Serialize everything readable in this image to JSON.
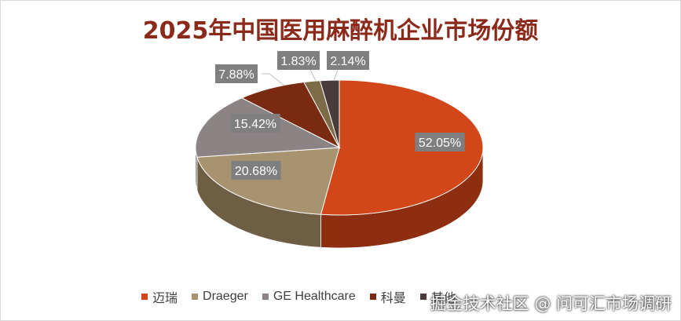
{
  "chart_data": {
    "type": "pie",
    "title": "2025年中国医用麻醉机企业市场份额",
    "legend_position": "bottom",
    "series": [
      {
        "name": "迈瑞",
        "value": 52.05,
        "label": "52.05%",
        "color": "#d1471a",
        "side": "#8c2e0f"
      },
      {
        "name": "Draeger",
        "value": 20.68,
        "label": "20.68%",
        "color": "#a89370",
        "side": "#6e5e44"
      },
      {
        "name": "GE Healthcare",
        "value": 15.42,
        "label": "15.42%",
        "color": "#8c8484",
        "side": "#5c5656"
      },
      {
        "name": "科曼",
        "value": 7.88,
        "label": "7.88%",
        "color": "#7a2a10",
        "side": "#4f1a08"
      },
      {
        "name": "",
        "value": 1.83,
        "label": "1.83%",
        "color": "#7d6b48",
        "side": "#4f432c"
      },
      {
        "name": "其他",
        "value": 2.14,
        "label": "2.14%",
        "color": "#4a3c3c",
        "side": "#2e2424"
      }
    ]
  },
  "legend": {
    "items": [
      "迈瑞",
      "Draeger",
      "GE Healthcare",
      "科曼",
      "其他"
    ]
  },
  "watermark": "掘金技术社区 @ 问可汇市场调研"
}
